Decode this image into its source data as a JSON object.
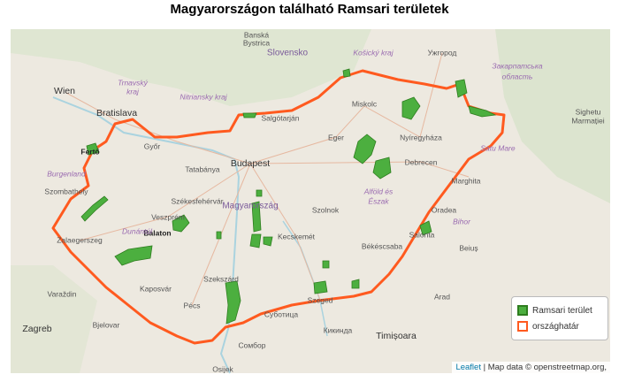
{
  "header": {
    "title": "Magyarországon található Ramsari területek"
  },
  "places": [
    "Banská",
    "Bystrica",
    "Slovensko",
    "Košický kraj",
    "Ужгород",
    "Закарпатська",
    "область",
    "Wien",
    "Bratislava",
    "Trnavský",
    "kraj",
    "Nitriansky kraj",
    "Salgótarján",
    "Miskolc",
    "Sighetu",
    "Marmației",
    "Győr",
    "Eger",
    "Nyíregyháza",
    "Fertő",
    "Budapest",
    "Debrecen",
    "Satu Mare",
    "Tatabánya",
    "Marghita",
    "Szombathely",
    "Székesfehérvár",
    "Alföld és",
    "Észak",
    "Magyarország",
    "Szolnok",
    "Veszprém",
    "Oradea",
    "Burgenland",
    "Balaton",
    "Kecskemét",
    "Békéscsaba",
    "Salonta",
    "Zalaegerszeg",
    "Bihor",
    "Beiuș",
    "Kaposvár",
    "Szeged",
    "Varaždin",
    "Pécs",
    "Szekszárd",
    "Arad",
    "Zagreb",
    "Bjelovar",
    "Суботица",
    "Timișoara",
    "Кикинда",
    "Сомбор",
    "Osijek",
    "Dunántúl"
  ],
  "legend": {
    "items": [
      {
        "label": "Ramsari terület",
        "fill": "#4caf3f",
        "stroke": "#2e7d1f"
      },
      {
        "label": "országhatár",
        "fill": "#ffffff",
        "stroke": "#ff5a1f"
      }
    ]
  },
  "attribution": {
    "leaflet": "Leaflet",
    "rest": "| Map data © openstreetmap.org,"
  }
}
